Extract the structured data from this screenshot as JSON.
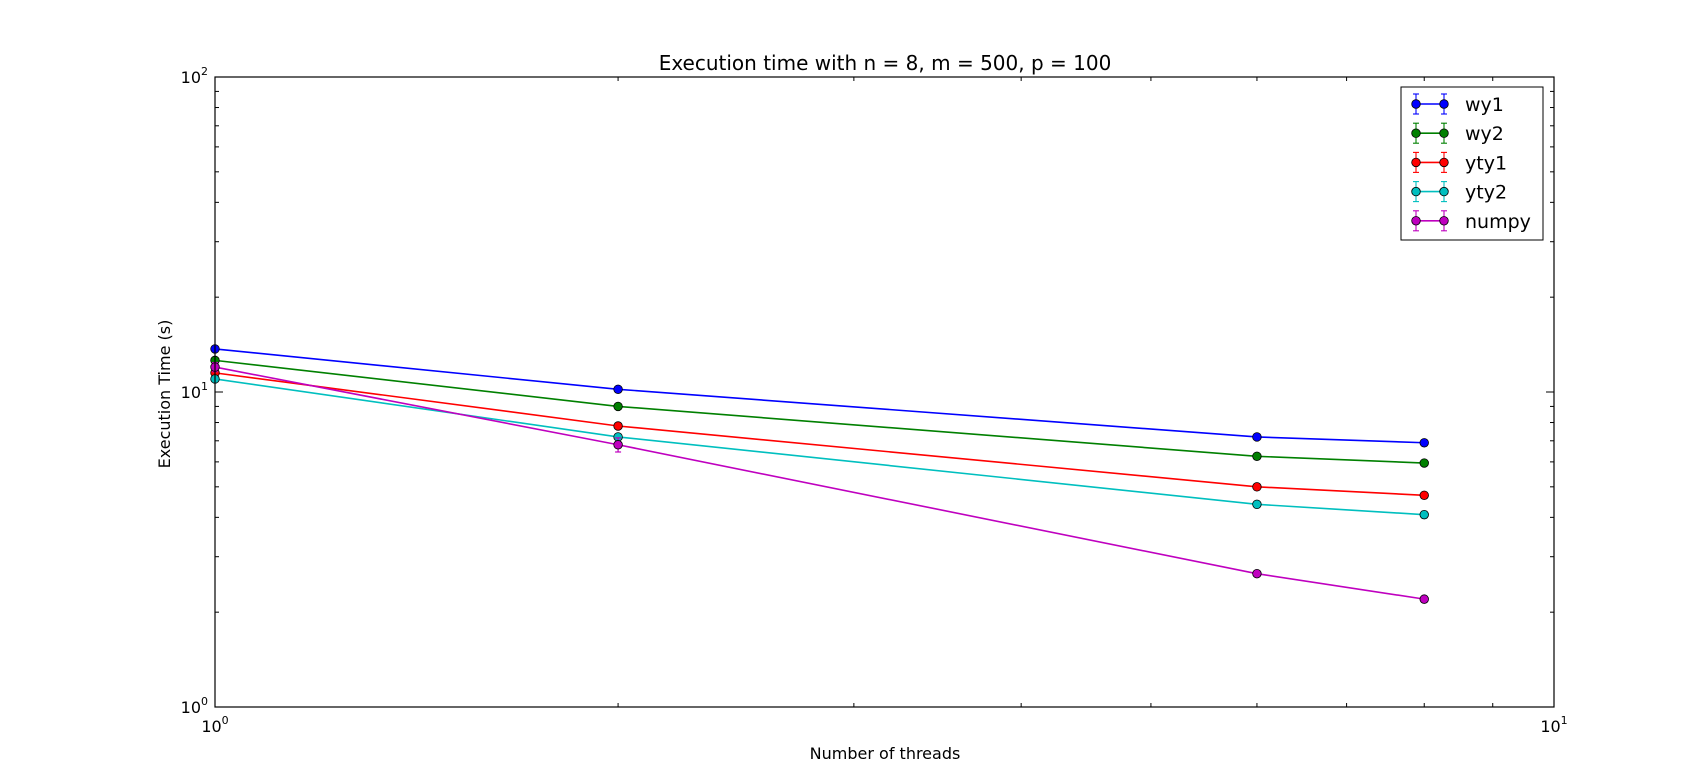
{
  "chart_data": {
    "type": "line",
    "title": "Execution time with n = 8, m = 500, p = 100",
    "xlabel": "Number of threads",
    "ylabel": "Execution Time (s)",
    "xscale": "log",
    "yscale": "log",
    "xlim": [
      1,
      10
    ],
    "ylim": [
      1,
      100
    ],
    "x_ticks": [
      {
        "base": "10",
        "exp": "0",
        "value": 1
      },
      {
        "base": "10",
        "exp": "1",
        "value": 10
      }
    ],
    "y_ticks": [
      {
        "base": "10",
        "exp": "0",
        "value": 1
      },
      {
        "base": "10",
        "exp": "1",
        "value": 10
      },
      {
        "base": "10",
        "exp": "2",
        "value": 100
      }
    ],
    "grid": false,
    "legend_position": "top-right",
    "x": [
      1,
      2,
      6,
      8
    ],
    "series": [
      {
        "name": "wy1",
        "color": "#0000ff",
        "values": [
          13.7,
          10.2,
          7.2,
          6.9
        ],
        "err": [
          0.2,
          0.15,
          0.1,
          0.1
        ]
      },
      {
        "name": "wy2",
        "color": "#008000",
        "values": [
          12.6,
          9.0,
          6.25,
          5.95
        ],
        "err": [
          0.2,
          0.15,
          0.1,
          0.1
        ]
      },
      {
        "name": "yty1",
        "color": "#ff0000",
        "values": [
          11.5,
          7.8,
          5.0,
          4.7
        ],
        "err": [
          0.2,
          0.15,
          0.1,
          0.1
        ]
      },
      {
        "name": "yty2",
        "color": "#00bfbf",
        "values": [
          11.0,
          7.2,
          4.4,
          4.08
        ],
        "err": [
          0.2,
          0.15,
          0.1,
          0.1
        ]
      },
      {
        "name": "numpy",
        "color": "#bf00bf",
        "values": [
          12.0,
          6.8,
          2.65,
          2.2
        ],
        "err": [
          0.4,
          0.35,
          0.05,
          0.05
        ]
      }
    ]
  }
}
